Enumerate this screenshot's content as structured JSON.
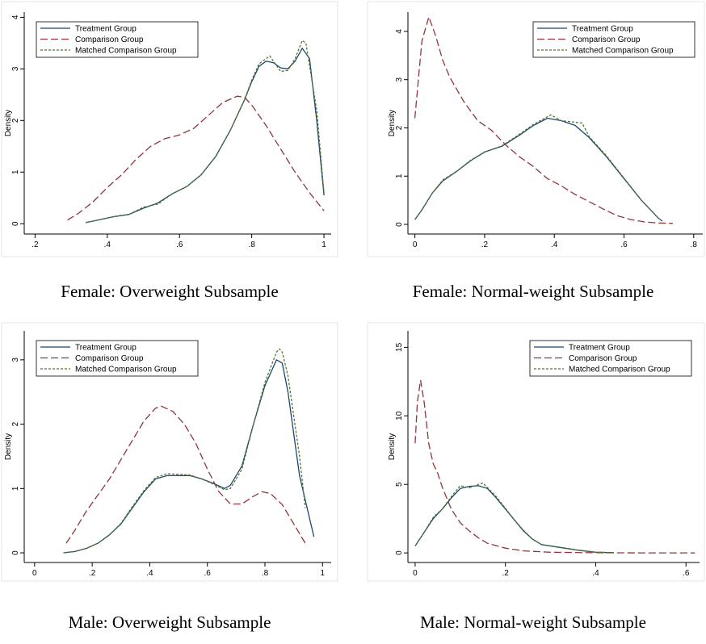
{
  "chart_data": [
    {
      "type": "line",
      "title": "Female: Overweight Subsample",
      "ylabel": "Density",
      "legend": "upper left",
      "xlim": [
        0.17,
        1.02
      ],
      "ylim": [
        -0.2,
        4.1
      ],
      "xticks": [
        {
          "value": 0.2,
          "label": ".2"
        },
        {
          "value": 0.4,
          "label": ".4"
        },
        {
          "value": 0.6,
          "label": ".6"
        },
        {
          "value": 0.8,
          "label": ".8"
        },
        1
      ],
      "yticks": [
        0,
        1,
        2,
        3,
        4
      ],
      "series": [
        {
          "name": "Treatment Group",
          "color": "#1a476f",
          "linestyle": "solid",
          "x": [
            0.34,
            0.38,
            0.42,
            0.46,
            0.5,
            0.54,
            0.58,
            0.62,
            0.66,
            0.7,
            0.74,
            0.78,
            0.8,
            0.82,
            0.84,
            0.86,
            0.88,
            0.9,
            0.92,
            0.94,
            0.96,
            0.98,
            1.0
          ],
          "values": [
            0.02,
            0.08,
            0.14,
            0.18,
            0.3,
            0.4,
            0.58,
            0.72,
            0.95,
            1.3,
            1.8,
            2.4,
            2.75,
            3.05,
            3.15,
            3.12,
            3.02,
            3.0,
            3.15,
            3.4,
            3.2,
            2.0,
            0.55
          ]
        },
        {
          "name": "Comparison Group",
          "color": "#90353b",
          "linestyle": "longdash",
          "x": [
            0.29,
            0.32,
            0.36,
            0.4,
            0.44,
            0.48,
            0.52,
            0.56,
            0.6,
            0.64,
            0.68,
            0.72,
            0.76,
            0.78,
            0.8,
            0.84,
            0.88,
            0.92,
            0.96,
            1.0
          ],
          "values": [
            0.07,
            0.2,
            0.42,
            0.7,
            0.95,
            1.25,
            1.5,
            1.65,
            1.72,
            1.85,
            2.1,
            2.35,
            2.47,
            2.45,
            2.3,
            1.9,
            1.45,
            1.0,
            0.6,
            0.25
          ]
        },
        {
          "name": "Matched Comparison Group",
          "color": "#55752f",
          "linestyle": "shortdash",
          "x": [
            0.34,
            0.38,
            0.42,
            0.46,
            0.5,
            0.54,
            0.58,
            0.62,
            0.66,
            0.7,
            0.74,
            0.78,
            0.8,
            0.82,
            0.84,
            0.85,
            0.88,
            0.9,
            0.92,
            0.94,
            0.95,
            0.98,
            1.0
          ],
          "values": [
            0.02,
            0.08,
            0.14,
            0.18,
            0.32,
            0.38,
            0.58,
            0.72,
            0.95,
            1.3,
            1.8,
            2.4,
            2.78,
            3.1,
            3.2,
            3.25,
            2.95,
            2.97,
            3.2,
            3.55,
            3.5,
            2.2,
            0.6
          ]
        }
      ]
    },
    {
      "type": "line",
      "title": "Female: Normal-weight Subsample",
      "ylabel": "Density",
      "legend": "upper right",
      "xlim": [
        -0.02,
        0.826
      ],
      "ylim": [
        -0.2,
        4.4
      ],
      "xticks": [
        0,
        {
          "value": 0.2,
          "label": ".2"
        },
        {
          "value": 0.4,
          "label": ".4"
        },
        {
          "value": 0.6,
          "label": ".6"
        },
        {
          "value": 0.8,
          "label": ".8"
        }
      ],
      "yticks": [
        0,
        1,
        2,
        3,
        4
      ],
      "series": [
        {
          "name": "Treatment Group",
          "color": "#1a476f",
          "linestyle": "solid",
          "x": [
            0,
            0.02,
            0.05,
            0.08,
            0.12,
            0.16,
            0.2,
            0.25,
            0.3,
            0.34,
            0.38,
            0.42,
            0.46,
            0.5,
            0.55,
            0.6,
            0.65,
            0.7,
            0.71
          ],
          "values": [
            0.1,
            0.3,
            0.65,
            0.9,
            1.1,
            1.32,
            1.5,
            1.62,
            1.85,
            2.05,
            2.2,
            2.15,
            2.05,
            1.8,
            1.4,
            0.95,
            0.5,
            0.12,
            0.07
          ]
        },
        {
          "name": "Comparison Group",
          "color": "#90353b",
          "linestyle": "longdash",
          "x": [
            0,
            0.01,
            0.02,
            0.04,
            0.06,
            0.08,
            0.1,
            0.14,
            0.18,
            0.22,
            0.26,
            0.3,
            0.34,
            0.38,
            0.42,
            0.46,
            0.5,
            0.54,
            0.58,
            0.62,
            0.66,
            0.7,
            0.74
          ],
          "values": [
            2.2,
            3.0,
            3.8,
            4.3,
            3.9,
            3.4,
            3.05,
            2.55,
            2.15,
            1.95,
            1.65,
            1.4,
            1.2,
            0.95,
            0.8,
            0.62,
            0.47,
            0.32,
            0.18,
            0.1,
            0.05,
            0.03,
            0.02
          ]
        },
        {
          "name": "Matched Comparison Group",
          "color": "#55752f",
          "linestyle": "shortdash",
          "x": [
            0,
            0.02,
            0.05,
            0.08,
            0.12,
            0.16,
            0.2,
            0.25,
            0.3,
            0.34,
            0.39,
            0.42,
            0.48,
            0.5,
            0.55,
            0.6,
            0.65,
            0.7,
            0.71
          ],
          "values": [
            0.1,
            0.3,
            0.65,
            0.92,
            1.1,
            1.33,
            1.5,
            1.63,
            1.87,
            2.07,
            2.27,
            2.15,
            2.1,
            1.82,
            1.42,
            0.96,
            0.5,
            0.12,
            0.07
          ]
        }
      ]
    },
    {
      "type": "line",
      "title": "Male: Overweight Subsample",
      "ylabel": "Density",
      "legend": "upper left",
      "xlim": [
        -0.036,
        1.03
      ],
      "ylim": [
        -0.15,
        3.45
      ],
      "xticks": [
        0,
        {
          "value": 0.2,
          "label": ".2"
        },
        {
          "value": 0.4,
          "label": ".4"
        },
        {
          "value": 0.6,
          "label": ".6"
        },
        {
          "value": 0.8,
          "label": ".8"
        },
        1
      ],
      "yticks": [
        0,
        1,
        2,
        3
      ],
      "series": [
        {
          "name": "Treatment Group",
          "color": "#1a476f",
          "linestyle": "solid",
          "x": [
            0.1,
            0.14,
            0.18,
            0.22,
            0.26,
            0.3,
            0.34,
            0.38,
            0.42,
            0.46,
            0.5,
            0.54,
            0.58,
            0.62,
            0.66,
            0.68,
            0.72,
            0.76,
            0.8,
            0.84,
            0.86,
            0.88,
            0.92,
            0.97
          ],
          "values": [
            0,
            0.02,
            0.07,
            0.15,
            0.28,
            0.45,
            0.7,
            0.95,
            1.15,
            1.2,
            1.2,
            1.2,
            1.15,
            1.08,
            1.0,
            1.05,
            1.35,
            2.0,
            2.6,
            3.0,
            2.95,
            2.5,
            1.2,
            0.25
          ]
        },
        {
          "name": "Comparison Group",
          "color": "#90353b",
          "linestyle": "longdash",
          "x": [
            0.11,
            0.14,
            0.18,
            0.22,
            0.26,
            0.3,
            0.34,
            0.38,
            0.42,
            0.44,
            0.48,
            0.52,
            0.56,
            0.6,
            0.64,
            0.68,
            0.72,
            0.76,
            0.79,
            0.82,
            0.86,
            0.9,
            0.94
          ],
          "values": [
            0.15,
            0.35,
            0.65,
            0.9,
            1.15,
            1.45,
            1.75,
            2.05,
            2.25,
            2.28,
            2.2,
            2.0,
            1.7,
            1.3,
            0.95,
            0.76,
            0.76,
            0.88,
            0.95,
            0.92,
            0.75,
            0.45,
            0.15
          ]
        },
        {
          "name": "Matched Comparison Group",
          "color": "#55752f",
          "linestyle": "shortdash",
          "x": [
            0.1,
            0.14,
            0.18,
            0.22,
            0.26,
            0.3,
            0.34,
            0.38,
            0.42,
            0.46,
            0.5,
            0.54,
            0.58,
            0.62,
            0.66,
            0.68,
            0.72,
            0.76,
            0.8,
            0.84,
            0.85,
            0.86,
            0.88,
            0.92,
            0.94
          ],
          "values": [
            0,
            0.02,
            0.07,
            0.15,
            0.28,
            0.46,
            0.72,
            0.97,
            1.17,
            1.23,
            1.22,
            1.21,
            1.15,
            1.07,
            0.98,
            1.0,
            1.3,
            2.0,
            2.65,
            3.12,
            3.17,
            3.12,
            2.75,
            1.5,
            0.7
          ]
        }
      ]
    },
    {
      "type": "line",
      "title": "Male: Normal-weight Subsample",
      "ylabel": "Density",
      "legend": "upper right",
      "xlim": [
        -0.016,
        0.63
      ],
      "ylim": [
        -0.7,
        16.2
      ],
      "xticks": [
        0,
        {
          "value": 0.2,
          "label": ".2"
        },
        {
          "value": 0.4,
          "label": ".4"
        },
        {
          "value": 0.6,
          "label": ".6"
        }
      ],
      "yticks": [
        0,
        5,
        10,
        15
      ],
      "series": [
        {
          "name": "Treatment Group",
          "color": "#1a476f",
          "linestyle": "solid",
          "x": [
            0,
            0.02,
            0.04,
            0.06,
            0.08,
            0.1,
            0.12,
            0.14,
            0.16,
            0.18,
            0.2,
            0.22,
            0.24,
            0.26,
            0.28,
            0.32,
            0.36,
            0.4,
            0.44
          ],
          "values": [
            0.5,
            1.5,
            2.5,
            3.2,
            4.0,
            4.7,
            4.85,
            4.9,
            4.7,
            4.0,
            3.2,
            2.4,
            1.6,
            1.0,
            0.6,
            0.4,
            0.2,
            0.05,
            0.02
          ]
        },
        {
          "name": "Comparison Group",
          "color": "#90353b",
          "linestyle": "longdash",
          "x": [
            0,
            0.005,
            0.012,
            0.02,
            0.03,
            0.04,
            0.05,
            0.06,
            0.08,
            0.1,
            0.12,
            0.14,
            0.16,
            0.2,
            0.24,
            0.3,
            0.4,
            0.5,
            0.62
          ],
          "values": [
            8.0,
            11,
            12.6,
            11.0,
            8.0,
            6.5,
            5.8,
            4.8,
            3.2,
            2.2,
            1.6,
            1.1,
            0.7,
            0.35,
            0.15,
            0.05,
            0.01,
            0,
            0
          ]
        },
        {
          "name": "Matched Comparison Group",
          "color": "#55752f",
          "linestyle": "shortdash",
          "x": [
            0,
            0.02,
            0.04,
            0.06,
            0.08,
            0.1,
            0.12,
            0.15,
            0.18,
            0.2,
            0.22,
            0.24,
            0.26,
            0.28,
            0.32,
            0.36,
            0.4,
            0.44
          ],
          "values": [
            0.5,
            1.5,
            2.6,
            3.2,
            4.1,
            4.9,
            4.75,
            5.1,
            4.1,
            3.25,
            2.4,
            1.65,
            1.0,
            0.62,
            0.42,
            0.2,
            0.05,
            0.02
          ]
        }
      ]
    }
  ]
}
